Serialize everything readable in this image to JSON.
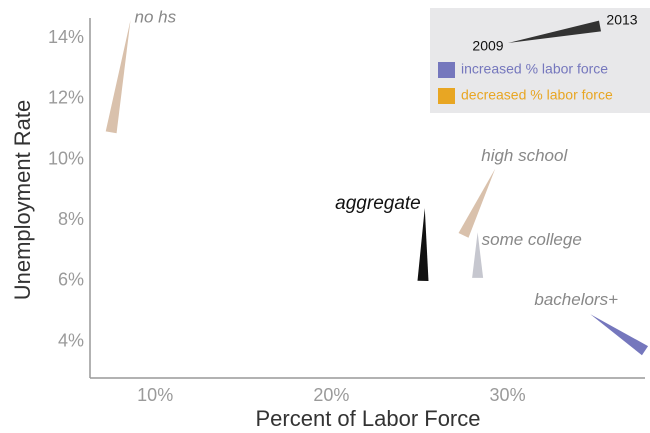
{
  "chart_data": {
    "type": "wedge",
    "x_label": "Percent of Labor Force",
    "y_label": "Unemployment Rate",
    "xlim": [
      6.3,
      37.8
    ],
    "ylim": [
      2.8,
      14.6
    ],
    "xticks": [
      {
        "value": 10,
        "label": "10%"
      },
      {
        "value": 20,
        "label": "20%"
      },
      {
        "value": 30,
        "label": "30%"
      }
    ],
    "yticks": [
      {
        "value": 4,
        "label": "4%"
      },
      {
        "value": 6,
        "label": "6%"
      },
      {
        "value": 8,
        "label": "8%"
      },
      {
        "value": 10,
        "label": "10%"
      },
      {
        "value": 12,
        "label": "12%"
      },
      {
        "value": 14,
        "label": "14%"
      }
    ],
    "series": [
      {
        "name": "no hs",
        "color": "#d9c1ac",
        "x": [
          8.6,
          7.5
        ],
        "values": [
          14.6,
          10.9
        ]
      },
      {
        "name": "high school",
        "color": "#d9c1ac",
        "x": [
          29.3,
          27.5
        ],
        "values": [
          9.7,
          7.5
        ]
      },
      {
        "name": "aggregate",
        "color": "#111111",
        "x": [
          25.3,
          25.2
        ],
        "values": [
          8.4,
          6.0
        ]
      },
      {
        "name": "some college",
        "color": "#c6c7cf",
        "x": [
          28.3,
          28.3
        ],
        "values": [
          7.6,
          6.1
        ]
      },
      {
        "name": "bachelors+",
        "color": "#7577bd",
        "x": [
          34.7,
          37.8
        ],
        "values": [
          4.9,
          3.7
        ]
      }
    ],
    "legend": {
      "start_label": "2009",
      "end_label": "2013",
      "items": [
        {
          "label": "increased % labor force",
          "color": "#7577bd"
        },
        {
          "label": "decreased % labor force",
          "color": "#e8a623"
        }
      ]
    }
  }
}
